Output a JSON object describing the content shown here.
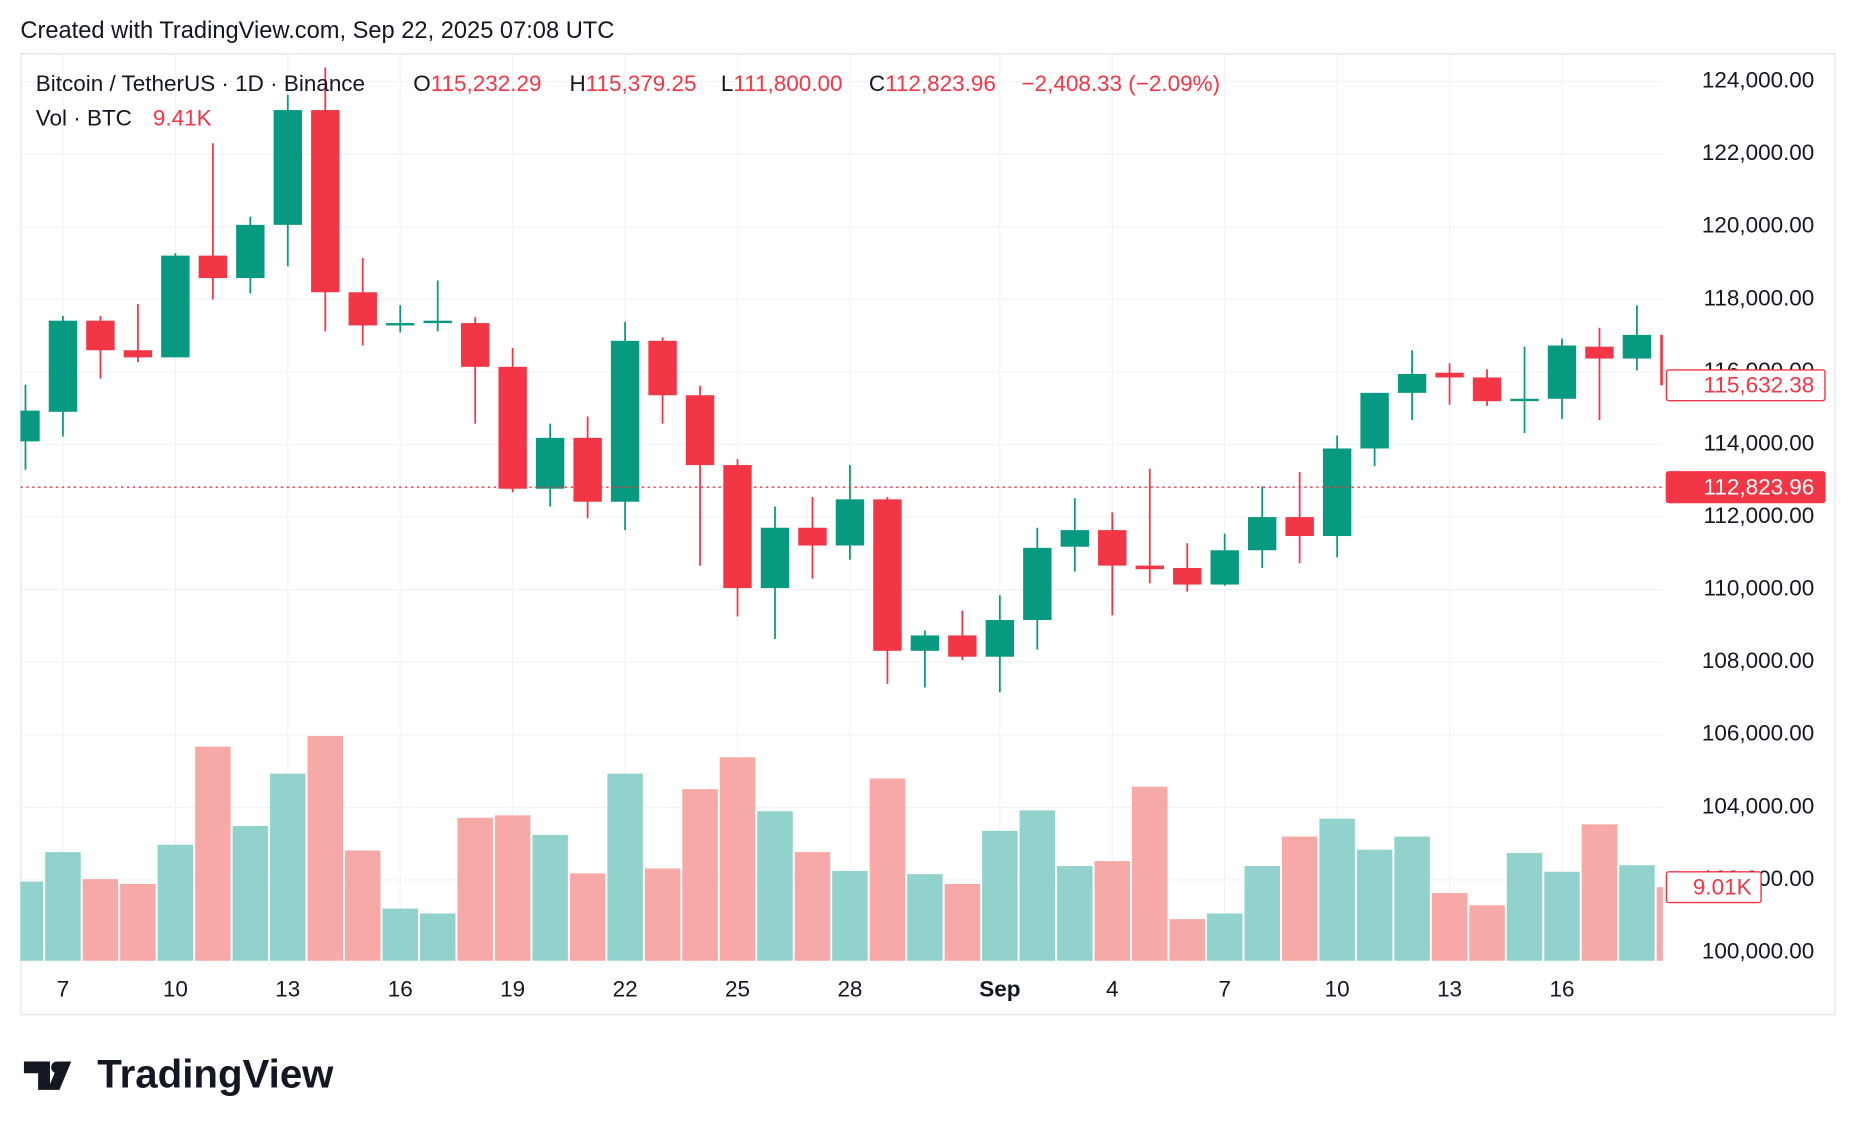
{
  "caption": "Created with TradingView.com, Sep 22, 2025 07:08 UTC",
  "footer": "TradingView",
  "legend": {
    "o_label": "O",
    "o_value": "115,232.29",
    "h_label": "H",
    "h_value": "115,379.25",
    "l_label": "L",
    "l_value": "111,800.00",
    "c_label": "C",
    "c_value": "112,823.96",
    "change": "−2,408.33 (−2.09%)",
    "volume": "9.41K"
  },
  "chart_data": {
    "type": "candlestick",
    "categories": [
      null,
      "7",
      null,
      null,
      "10",
      null,
      null,
      "13",
      null,
      null,
      "16",
      null,
      null,
      "19",
      null,
      null,
      "22",
      null,
      null,
      "25",
      null,
      null,
      "28",
      null,
      null,
      null,
      "Sep",
      null,
      null,
      "4",
      null,
      null,
      "7",
      null,
      null,
      "10",
      null,
      null,
      "13",
      null,
      null,
      "16",
      null,
      null,
      null
    ],
    "series": [
      {
        "name": "Bitcoin / TetherUS · 1D · Binance",
        "open": [
          114087,
          114902,
          117413,
          116598,
          116402,
          119206,
          118587,
          120054,
          123217,
          118196,
          117282,
          117347,
          117347,
          116141,
          112782,
          114184,
          112423,
          116858,
          115358,
          113434,
          110043,
          111706,
          111217,
          112489,
          108315,
          108739,
          108152,
          109163,
          111184,
          111641,
          110663,
          110598,
          110141,
          111086,
          112000,
          111478,
          113891,
          115424,
          115978,
          115848,
          115195,
          115261,
          116696,
          116369,
          117021
        ],
        "high": [
          115652,
          117543,
          117543,
          117869,
          119271,
          122304,
          120282,
          123641,
          124391,
          119141,
          117837,
          118522,
          117510,
          116663,
          114576,
          114771,
          117380,
          116956,
          115619,
          113598,
          112293,
          112554,
          113434,
          112554,
          108869,
          109424,
          109847,
          111706,
          112521,
          112130,
          113337,
          111282,
          111543,
          112847,
          113239,
          114250,
          115424,
          116598,
          116239,
          116076,
          116696,
          116924,
          117217,
          117837,
          117021
        ],
        "low": [
          113304,
          114217,
          115815,
          116271,
          116402,
          118000,
          118163,
          118913,
          117119,
          116728,
          117087,
          117119,
          114576,
          112684,
          112293,
          111967,
          111641,
          114576,
          110663,
          109260,
          108640,
          110304,
          110826,
          107402,
          107304,
          108054,
          107173,
          108347,
          110500,
          109293,
          110174,
          109945,
          110108,
          110598,
          110728,
          110891,
          113402,
          114674,
          115097,
          115065,
          114315,
          114706,
          114674,
          116043,
          115500
        ],
        "close": [
          114934,
          117413,
          116598,
          116402,
          119206,
          118587,
          120054,
          123217,
          118196,
          117282,
          117347,
          117413,
          116141,
          112782,
          114184,
          112423,
          116858,
          115358,
          113434,
          110043,
          111706,
          111217,
          112489,
          108315,
          108739,
          108152,
          109163,
          111152,
          111641,
          110663,
          110565,
          110141,
          111086,
          112000,
          111478,
          113891,
          115424,
          115945,
          115848,
          115195,
          115261,
          116728,
          116369,
          117021,
          115632.38
        ]
      },
      {
        "name": "Vol · BTC",
        "axis": "y2",
        "values": [
          9.7,
          13.3,
          10.0,
          9.4,
          14.2,
          26.2,
          16.5,
          22.9,
          27.5,
          13.5,
          6.4,
          5.8,
          17.5,
          17.8,
          15.4,
          10.7,
          22.9,
          11.3,
          21.0,
          24.9,
          18.3,
          13.3,
          11.0,
          22.3,
          10.6,
          9.4,
          15.9,
          18.4,
          11.6,
          12.2,
          21.3,
          5.1,
          5.8,
          11.6,
          15.2,
          17.4,
          13.6,
          15.2,
          8.3,
          6.8,
          13.2,
          10.9,
          16.7,
          11.7,
          9.01
        ]
      }
    ],
    "up_color": "#089981",
    "down_color": "#f23645",
    "volume_up_color": "#92d2cc",
    "volume_down_color": "#f7a9a7",
    "ylim": [
      99770,
      124783
    ],
    "yticks": [
      {
        "value": 100000,
        "label": "100,000.00"
      },
      {
        "value": 102000,
        "label": "102,000.00"
      },
      {
        "value": 104000,
        "label": "104,000.00"
      },
      {
        "value": 106000,
        "label": "106,000.00"
      },
      {
        "value": 108000,
        "label": "108,000.00"
      },
      {
        "value": 110000,
        "label": "110,000.00"
      },
      {
        "value": 112000,
        "label": "112,000.00"
      },
      {
        "value": 114000,
        "label": "114,000.00"
      },
      {
        "value": 116000,
        "label": "116,000.00"
      },
      {
        "value": 118000,
        "label": "118,000.00"
      },
      {
        "value": 120000,
        "label": "120,000.00"
      },
      {
        "value": 122000,
        "label": "122,000.00"
      },
      {
        "value": 124000,
        "label": "124,000.00"
      }
    ],
    "y2lim": [
      0,
      111
    ],
    "grid": true,
    "price_markers": [
      {
        "value": 115632.38,
        "label": "115,632.38",
        "style": "outline"
      },
      {
        "value": 112823.96,
        "label": "112,823.96",
        "style": "filled"
      }
    ],
    "volume_marker": {
      "value": 9.01,
      "label": "9.01K"
    }
  }
}
